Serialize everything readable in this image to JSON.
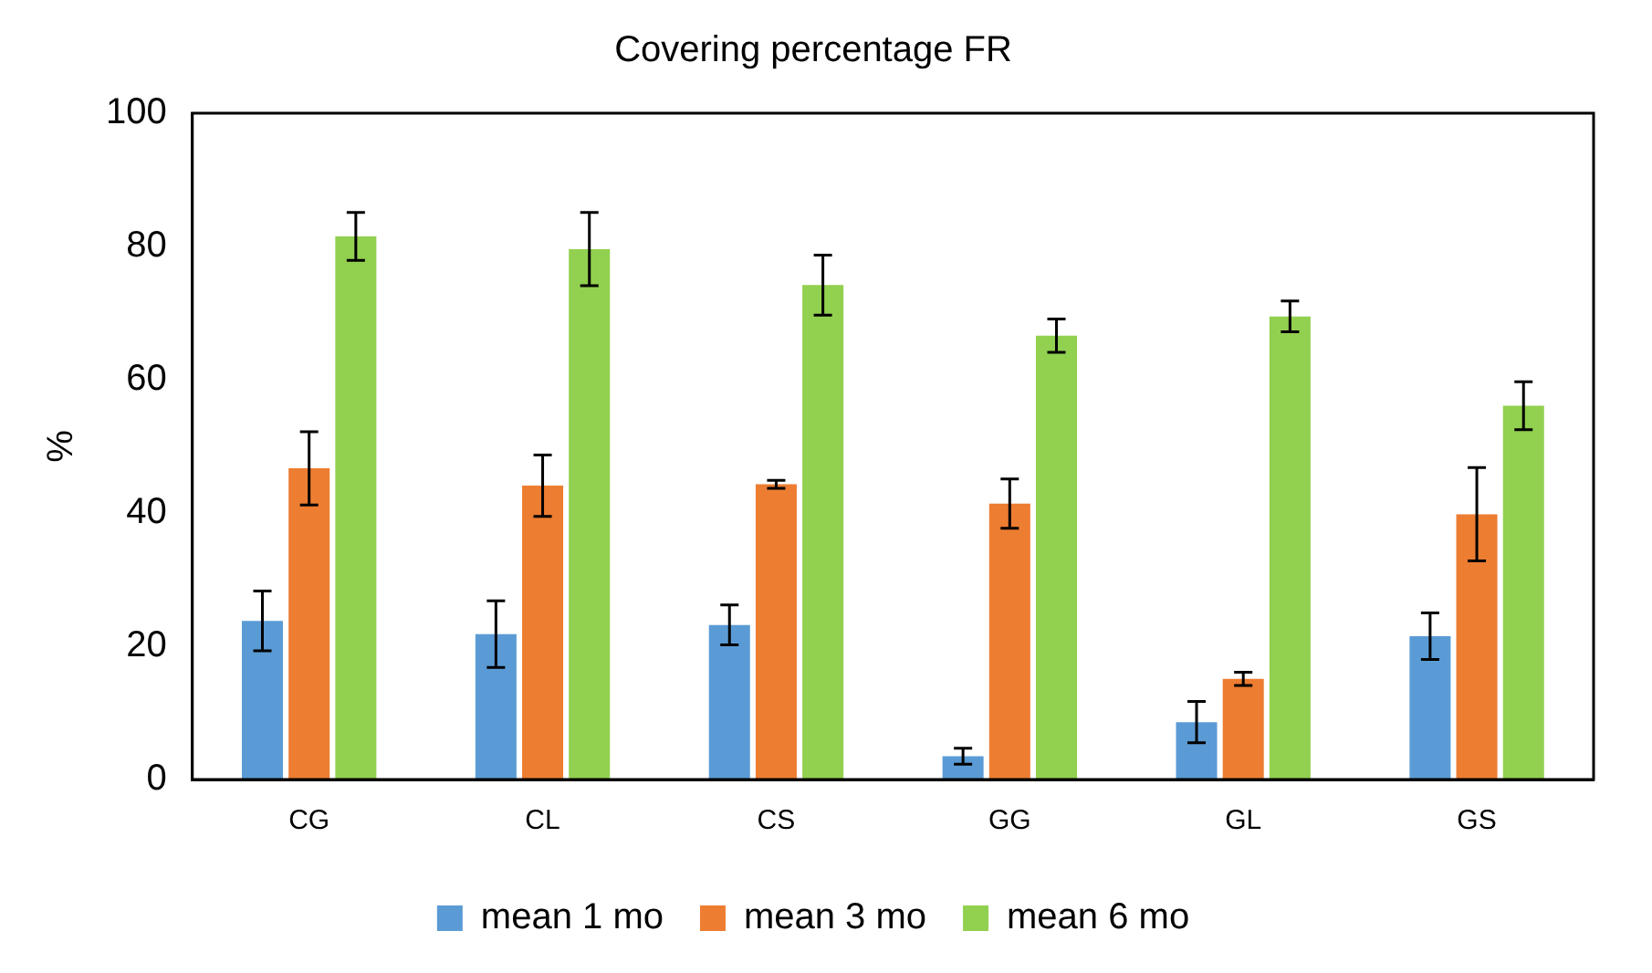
{
  "chart_data": {
    "type": "bar",
    "title": "Covering percentage FR",
    "ylabel": "%",
    "categories": [
      "CG",
      "CL",
      "CS",
      "GG",
      "GL",
      "GS"
    ],
    "series": [
      {
        "name": "mean 1 mo",
        "color": "#5b9bd5",
        "values": [
          23.8,
          21.8,
          23.2,
          3.5,
          8.6,
          21.5
        ],
        "errors": [
          4.5,
          5,
          3,
          1.2,
          3.1,
          3.5
        ]
      },
      {
        "name": "mean 3 mo",
        "color": "#ed7d31",
        "values": [
          46.7,
          44.1,
          44.3,
          41.4,
          15.1,
          39.8
        ],
        "errors": [
          5.5,
          4.6,
          0.6,
          3.7,
          1,
          7
        ]
      },
      {
        "name": "mean 6 mo",
        "color": "#92d050",
        "values": [
          81.5,
          79.6,
          74.2,
          66.6,
          69.5,
          56.1
        ],
        "errors": [
          3.6,
          5.5,
          4.5,
          2.5,
          2.3,
          3.6
        ]
      }
    ],
    "ylim": [
      0,
      100
    ],
    "yticks": [
      0,
      20,
      40,
      60,
      80,
      100
    ],
    "grid": false,
    "legend": "bottom"
  }
}
